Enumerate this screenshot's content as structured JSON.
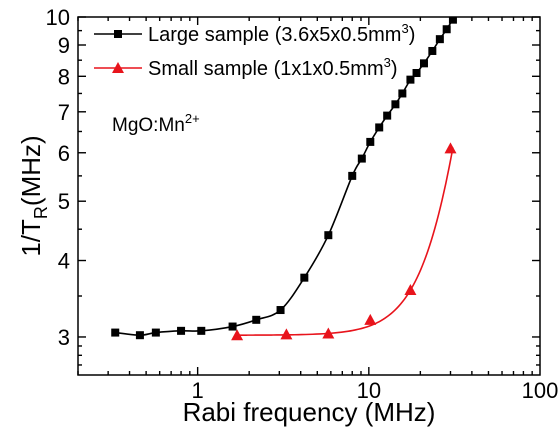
{
  "chart_data": {
    "type": "scatter",
    "x_scale": "log",
    "y_scale": "log",
    "xlim": [
      0.2,
      100
    ],
    "ylim": [
      2.6,
      10
    ],
    "xlabel": "Rabi frequency (MHz)",
    "ylabel_main": "1/T",
    "ylabel_sub": "R",
    "ylabel_unit": "(MHz)",
    "annotation": {
      "text": "MgO:Mn",
      "sup": "2+"
    },
    "x_ticks": [
      1,
      10,
      100
    ],
    "x_tick_labels": [
      "1",
      "10",
      "100"
    ],
    "y_ticks": [
      3,
      4,
      5,
      6,
      7,
      8,
      9,
      10
    ],
    "y_tick_labels": [
      "3",
      "4",
      "5",
      "6",
      "7",
      "8",
      "9",
      "10"
    ],
    "grid": false,
    "legend_position": "top-left",
    "series": [
      {
        "name": "Large sample (3.6x5x0.5mm",
        "name_sup": "3",
        "name_close": ")",
        "color": "#000000",
        "marker": "square",
        "x": [
          0.33,
          0.46,
          0.57,
          0.8,
          1.05,
          1.6,
          2.2,
          3.05,
          4.2,
          5.8,
          8.0,
          9.1,
          10.2,
          11.5,
          12.8,
          14.3,
          15.7,
          17.5,
          19.0,
          21.0,
          23.5,
          26.0,
          28.5,
          31.0,
          34.0
        ],
        "y": [
          3.05,
          3.02,
          3.05,
          3.07,
          3.07,
          3.12,
          3.2,
          3.32,
          3.75,
          4.4,
          5.5,
          5.87,
          6.25,
          6.6,
          6.9,
          7.2,
          7.5,
          7.9,
          8.1,
          8.4,
          8.8,
          9.2,
          9.55,
          9.9,
          10.2
        ]
      },
      {
        "name": "Small sample (1x1x0.5mm",
        "name_sup": "3",
        "name_close": ")",
        "color": "#e8141c",
        "marker": "triangle",
        "x": [
          1.7,
          3.3,
          5.8,
          10.2,
          17.5,
          30.0
        ],
        "y": [
          3.02,
          3.03,
          3.04,
          3.2,
          3.58,
          6.1
        ]
      }
    ]
  }
}
